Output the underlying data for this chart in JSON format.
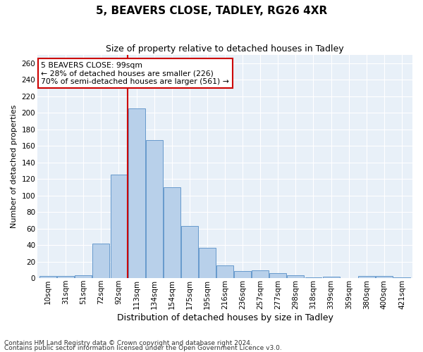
{
  "title": "5, BEAVERS CLOSE, TADLEY, RG26 4XR",
  "subtitle": "Size of property relative to detached houses in Tadley",
  "xlabel": "Distribution of detached houses by size in Tadley",
  "ylabel": "Number of detached properties",
  "categories": [
    "10sqm",
    "31sqm",
    "51sqm",
    "72sqm",
    "92sqm",
    "113sqm",
    "134sqm",
    "154sqm",
    "175sqm",
    "195sqm",
    "216sqm",
    "236sqm",
    "257sqm",
    "277sqm",
    "298sqm",
    "318sqm",
    "339sqm",
    "359sqm",
    "380sqm",
    "400sqm",
    "421sqm"
  ],
  "values": [
    3,
    3,
    4,
    42,
    125,
    205,
    167,
    110,
    63,
    37,
    16,
    9,
    10,
    6,
    4,
    1,
    2,
    0,
    3,
    3,
    1
  ],
  "bar_color": "#b8d0ea",
  "bar_edge_color": "#6699cc",
  "fig_bg_color": "#ffffff",
  "ax_bg_color": "#e8f0f8",
  "grid_color": "#ffffff",
  "vline_color": "#cc0000",
  "vline_x": 4.5,
  "annotation_text": "5 BEAVERS CLOSE: 99sqm\n← 28% of detached houses are smaller (226)\n70% of semi-detached houses are larger (561) →",
  "annotation_box_color": "#cc0000",
  "ylim": [
    0,
    270
  ],
  "yticks": [
    0,
    20,
    40,
    60,
    80,
    100,
    120,
    140,
    160,
    180,
    200,
    220,
    240,
    260
  ],
  "title_fontsize": 11,
  "subtitle_fontsize": 9,
  "ylabel_fontsize": 8,
  "xlabel_fontsize": 9,
  "tick_fontsize": 7.5,
  "footer1": "Contains HM Land Registry data © Crown copyright and database right 2024.",
  "footer2": "Contains public sector information licensed under the Open Government Licence v3.0.",
  "footer_fontsize": 6.5
}
